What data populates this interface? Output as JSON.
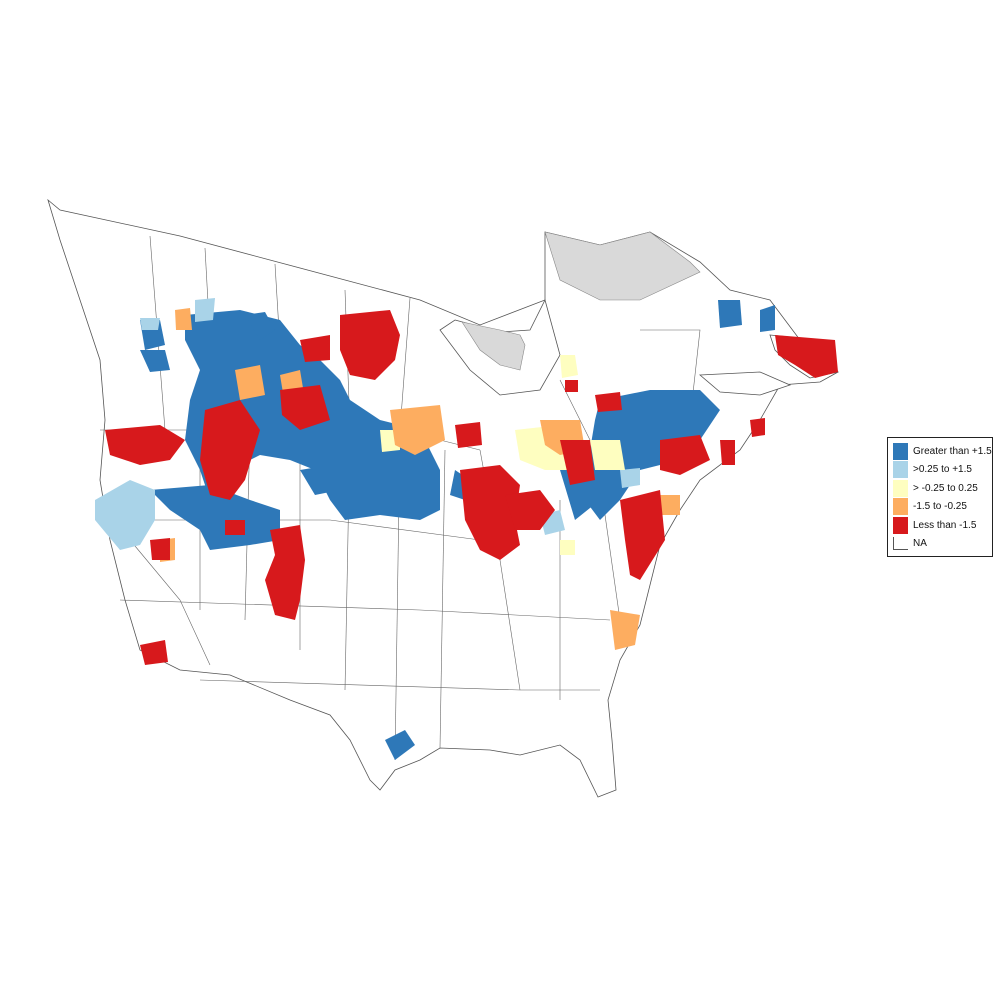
{
  "legend": {
    "items": [
      {
        "label": "Greater than +1.5",
        "color": "#2e78b8"
      },
      {
        "label": ">0.25 to +1.5",
        "color": "#a9d3e8"
      },
      {
        "label": "> -0.25 to 0.25",
        "color": "#fefec0"
      },
      {
        "label": "-1.5 to -0.25",
        "color": "#fdad60"
      },
      {
        "label": "Less than -1.5",
        "color": "#d7191c"
      },
      {
        "label": "NA",
        "color": "#ffffff"
      }
    ]
  },
  "na_region_color": "#d9d9d9"
}
